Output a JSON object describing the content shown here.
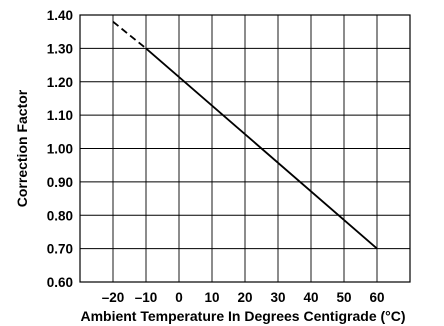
{
  "chart_data": {
    "type": "line",
    "title": "",
    "xlabel": "Ambient Temperature In Degrees Centigrade (°C)",
    "ylabel": "Correction Factor",
    "xlim": [
      -30,
      70
    ],
    "ylim": [
      0.6,
      1.4
    ],
    "x_ticks": [
      -20,
      -10,
      0,
      10,
      20,
      30,
      40,
      50,
      60
    ],
    "x_tick_labels": [
      "–20",
      "–10",
      "0",
      "10",
      "20",
      "30",
      "40",
      "50",
      "60"
    ],
    "y_ticks": [
      0.6,
      0.7,
      0.8,
      0.9,
      1.0,
      1.1,
      1.2,
      1.3,
      1.4
    ],
    "y_tick_labels": [
      "0.60",
      "0.70",
      "0.80",
      "0.90",
      "1.00",
      "1.10",
      "1.20",
      "1.30",
      "1.40"
    ],
    "grid": true,
    "series": [
      {
        "style": "dashed",
        "x": [
          -20,
          -10
        ],
        "y": [
          1.38,
          1.3
        ]
      },
      {
        "style": "solid",
        "x": [
          -10,
          60
        ],
        "y": [
          1.3,
          0.7
        ]
      }
    ],
    "colors": {
      "line": "#000000",
      "grid": "#000000",
      "background": "#ffffff"
    }
  }
}
